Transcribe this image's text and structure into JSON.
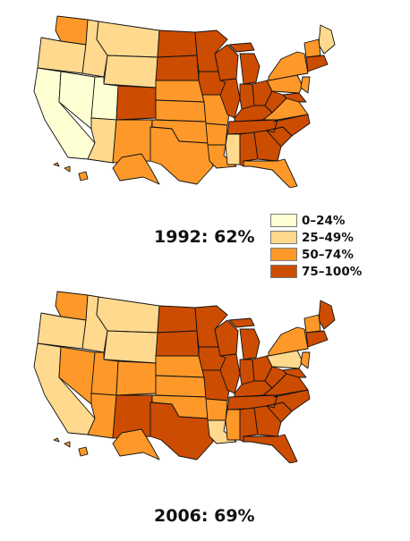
{
  "legend": {
    "items": [
      {
        "label": "0–24%",
        "color": "#ffffd4"
      },
      {
        "label": "25–49%",
        "color": "#fed98e"
      },
      {
        "label": "50–74%",
        "color": "#fe9929"
      },
      {
        "label": "75–100%",
        "color": "#cc4c02"
      }
    ]
  },
  "maps": [
    {
      "caption": "1992: 62%",
      "states": {
        "WA": "#fe9929",
        "OR": "#fed98e",
        "ID": "#fed98e",
        "MT": "#fed98e",
        "WY": "#fed98e",
        "CA": "#ffffd4",
        "NV": "#ffffd4",
        "UT": "#ffffd4",
        "AZ": "#fed98e",
        "CO": "#cc4c02",
        "NM": "#fe9929",
        "ND": "#cc4c02",
        "SD": "#cc4c02",
        "NE": "#fe9929",
        "KS": "#fe9929",
        "OK": "#fe9929",
        "TX": "#fe9929",
        "MN": "#cc4c02",
        "IA": "#cc4c02",
        "MO": "#fe9929",
        "AR": "#fe9929",
        "LA": "#fe9929",
        "WI": "#cc4c02",
        "IL": "#cc4c02",
        "MI": "#cc4c02",
        "IN": "#cc4c02",
        "OH": "#cc4c02",
        "KY": "#cc4c02",
        "TN": "#cc4c02",
        "MS": "#fed98e",
        "AL": "#cc4c02",
        "GA": "#cc4c02",
        "FL": "#fe9929",
        "SC": "#cc4c02",
        "NC": "#cc4c02",
        "VA": "#fe9929",
        "WV": "#cc4c02",
        "PA": "#fe9929",
        "NY": "#fe9929",
        "ME": "#fed98e",
        "NE6": "#fe9929",
        "MA": "#cc4c02",
        "NJ": "#fe9929",
        "MD": "#cc4c02",
        "AK": "#fe9929",
        "HI": "#fe9929"
      }
    },
    {
      "caption": "2006: 69%",
      "states": {
        "WA": "#fe9929",
        "OR": "#fed98e",
        "ID": "#fed98e",
        "MT": "#fed98e",
        "WY": "#fed98e",
        "CA": "#fed98e",
        "NV": "#fe9929",
        "UT": "#fe9929",
        "AZ": "#fe9929",
        "CO": "#fe9929",
        "NM": "#cc4c02",
        "ND": "#cc4c02",
        "SD": "#cc4c02",
        "NE": "#fe9929",
        "KS": "#fe9929",
        "OK": "#fe9929",
        "TX": "#cc4c02",
        "MN": "#cc4c02",
        "IA": "#cc4c02",
        "MO": "#cc4c02",
        "AR": "#fe9929",
        "LA": "#fed98e",
        "WI": "#cc4c02",
        "IL": "#cc4c02",
        "MI": "#cc4c02",
        "IN": "#cc4c02",
        "OH": "#cc4c02",
        "KY": "#cc4c02",
        "TN": "#cc4c02",
        "MS": "#fe9929",
        "AL": "#cc4c02",
        "GA": "#cc4c02",
        "FL": "#cc4c02",
        "SC": "#cc4c02",
        "NC": "#cc4c02",
        "VA": "#cc4c02",
        "WV": "#cc4c02",
        "PA": "#fed98e",
        "NY": "#fe9929",
        "ME": "#cc4c02",
        "NE6": "#fe9929",
        "MA": "#cc4c02",
        "NJ": "#fe9929",
        "MD": "#cc4c02",
        "AK": "#fe9929",
        "HI": "#fe9929"
      }
    }
  ]
}
